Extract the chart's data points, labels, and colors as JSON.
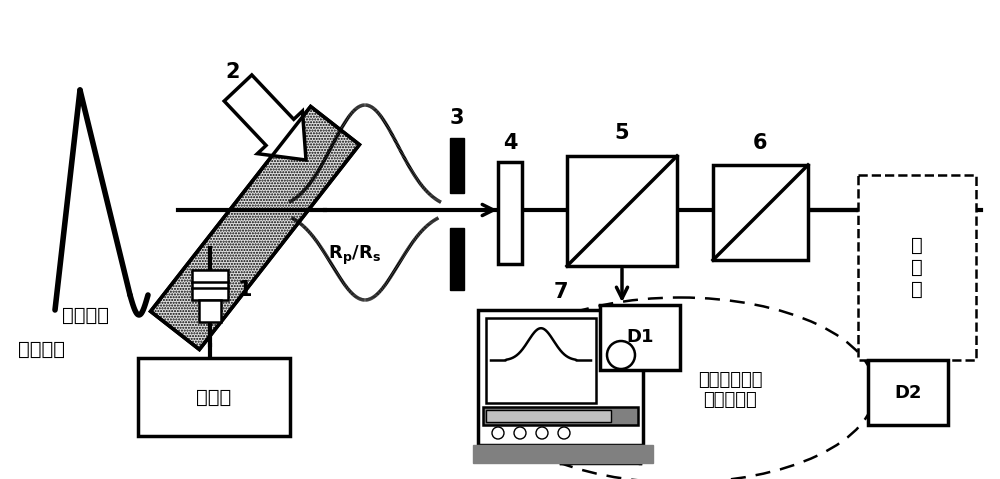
{
  "bg_color": "#ffffff",
  "line_color": "#000000",
  "label_gamma": "伽马脉冲",
  "label_probe": "探针激光",
  "label_laser": "激光器",
  "label_system": "激光脉冲测量\n与记录系统",
  "label_image": "像\n传\n递",
  "label_rp_rs": "R_p/R_s",
  "num1": "1",
  "num2": "2",
  "num3": "3",
  "num4": "4",
  "num5": "5",
  "num6": "6",
  "num7": "7",
  "d1": "D1",
  "d2": "D2",
  "figw": 10.0,
  "figh": 4.79,
  "dpi": 100
}
